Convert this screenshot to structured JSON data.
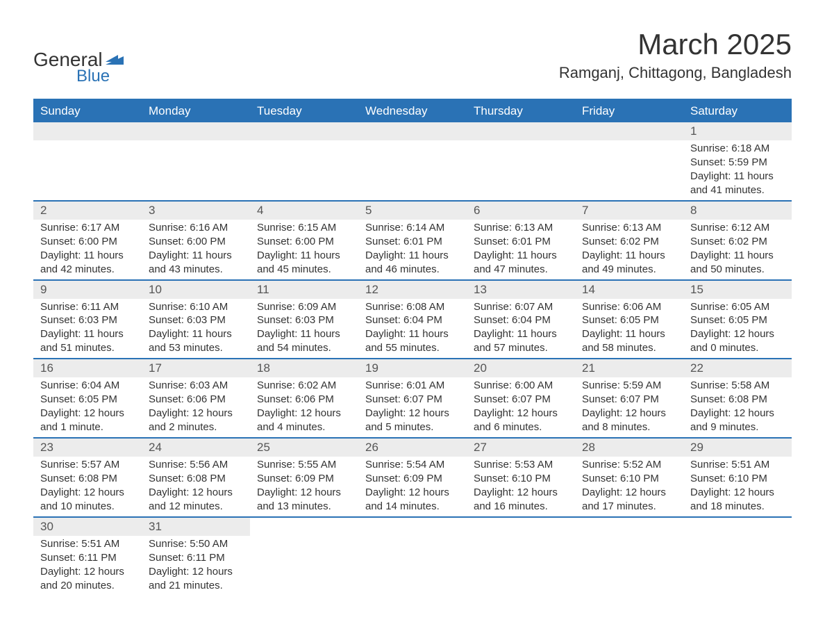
{
  "logo": {
    "text_top": "General",
    "text_bottom": "Blue"
  },
  "title": "March 2025",
  "location": "Ramganj, Chittagong, Bangladesh",
  "colors": {
    "header_bg": "#2a72b5",
    "header_text": "#ffffff",
    "daynum_bg": "#ececec",
    "daynum_text": "#555555",
    "body_text": "#333333",
    "rule": "#2a72b5",
    "page_bg": "#ffffff"
  },
  "typography": {
    "title_fontsize": 42,
    "location_fontsize": 22,
    "dayheader_fontsize": 17,
    "daynum_fontsize": 17,
    "body_fontsize": 15
  },
  "day_headers": [
    "Sunday",
    "Monday",
    "Tuesday",
    "Wednesday",
    "Thursday",
    "Friday",
    "Saturday"
  ],
  "weeks": [
    [
      {
        "num": "",
        "sunrise": "",
        "sunset": "",
        "daylight": ""
      },
      {
        "num": "",
        "sunrise": "",
        "sunset": "",
        "daylight": ""
      },
      {
        "num": "",
        "sunrise": "",
        "sunset": "",
        "daylight": ""
      },
      {
        "num": "",
        "sunrise": "",
        "sunset": "",
        "daylight": ""
      },
      {
        "num": "",
        "sunrise": "",
        "sunset": "",
        "daylight": ""
      },
      {
        "num": "",
        "sunrise": "",
        "sunset": "",
        "daylight": ""
      },
      {
        "num": "1",
        "sunrise": "Sunrise: 6:18 AM",
        "sunset": "Sunset: 5:59 PM",
        "daylight": "Daylight: 11 hours and 41 minutes."
      }
    ],
    [
      {
        "num": "2",
        "sunrise": "Sunrise: 6:17 AM",
        "sunset": "Sunset: 6:00 PM",
        "daylight": "Daylight: 11 hours and 42 minutes."
      },
      {
        "num": "3",
        "sunrise": "Sunrise: 6:16 AM",
        "sunset": "Sunset: 6:00 PM",
        "daylight": "Daylight: 11 hours and 43 minutes."
      },
      {
        "num": "4",
        "sunrise": "Sunrise: 6:15 AM",
        "sunset": "Sunset: 6:00 PM",
        "daylight": "Daylight: 11 hours and 45 minutes."
      },
      {
        "num": "5",
        "sunrise": "Sunrise: 6:14 AM",
        "sunset": "Sunset: 6:01 PM",
        "daylight": "Daylight: 11 hours and 46 minutes."
      },
      {
        "num": "6",
        "sunrise": "Sunrise: 6:13 AM",
        "sunset": "Sunset: 6:01 PM",
        "daylight": "Daylight: 11 hours and 47 minutes."
      },
      {
        "num": "7",
        "sunrise": "Sunrise: 6:13 AM",
        "sunset": "Sunset: 6:02 PM",
        "daylight": "Daylight: 11 hours and 49 minutes."
      },
      {
        "num": "8",
        "sunrise": "Sunrise: 6:12 AM",
        "sunset": "Sunset: 6:02 PM",
        "daylight": "Daylight: 11 hours and 50 minutes."
      }
    ],
    [
      {
        "num": "9",
        "sunrise": "Sunrise: 6:11 AM",
        "sunset": "Sunset: 6:03 PM",
        "daylight": "Daylight: 11 hours and 51 minutes."
      },
      {
        "num": "10",
        "sunrise": "Sunrise: 6:10 AM",
        "sunset": "Sunset: 6:03 PM",
        "daylight": "Daylight: 11 hours and 53 minutes."
      },
      {
        "num": "11",
        "sunrise": "Sunrise: 6:09 AM",
        "sunset": "Sunset: 6:03 PM",
        "daylight": "Daylight: 11 hours and 54 minutes."
      },
      {
        "num": "12",
        "sunrise": "Sunrise: 6:08 AM",
        "sunset": "Sunset: 6:04 PM",
        "daylight": "Daylight: 11 hours and 55 minutes."
      },
      {
        "num": "13",
        "sunrise": "Sunrise: 6:07 AM",
        "sunset": "Sunset: 6:04 PM",
        "daylight": "Daylight: 11 hours and 57 minutes."
      },
      {
        "num": "14",
        "sunrise": "Sunrise: 6:06 AM",
        "sunset": "Sunset: 6:05 PM",
        "daylight": "Daylight: 11 hours and 58 minutes."
      },
      {
        "num": "15",
        "sunrise": "Sunrise: 6:05 AM",
        "sunset": "Sunset: 6:05 PM",
        "daylight": "Daylight: 12 hours and 0 minutes."
      }
    ],
    [
      {
        "num": "16",
        "sunrise": "Sunrise: 6:04 AM",
        "sunset": "Sunset: 6:05 PM",
        "daylight": "Daylight: 12 hours and 1 minute."
      },
      {
        "num": "17",
        "sunrise": "Sunrise: 6:03 AM",
        "sunset": "Sunset: 6:06 PM",
        "daylight": "Daylight: 12 hours and 2 minutes."
      },
      {
        "num": "18",
        "sunrise": "Sunrise: 6:02 AM",
        "sunset": "Sunset: 6:06 PM",
        "daylight": "Daylight: 12 hours and 4 minutes."
      },
      {
        "num": "19",
        "sunrise": "Sunrise: 6:01 AM",
        "sunset": "Sunset: 6:07 PM",
        "daylight": "Daylight: 12 hours and 5 minutes."
      },
      {
        "num": "20",
        "sunrise": "Sunrise: 6:00 AM",
        "sunset": "Sunset: 6:07 PM",
        "daylight": "Daylight: 12 hours and 6 minutes."
      },
      {
        "num": "21",
        "sunrise": "Sunrise: 5:59 AM",
        "sunset": "Sunset: 6:07 PM",
        "daylight": "Daylight: 12 hours and 8 minutes."
      },
      {
        "num": "22",
        "sunrise": "Sunrise: 5:58 AM",
        "sunset": "Sunset: 6:08 PM",
        "daylight": "Daylight: 12 hours and 9 minutes."
      }
    ],
    [
      {
        "num": "23",
        "sunrise": "Sunrise: 5:57 AM",
        "sunset": "Sunset: 6:08 PM",
        "daylight": "Daylight: 12 hours and 10 minutes."
      },
      {
        "num": "24",
        "sunrise": "Sunrise: 5:56 AM",
        "sunset": "Sunset: 6:08 PM",
        "daylight": "Daylight: 12 hours and 12 minutes."
      },
      {
        "num": "25",
        "sunrise": "Sunrise: 5:55 AM",
        "sunset": "Sunset: 6:09 PM",
        "daylight": "Daylight: 12 hours and 13 minutes."
      },
      {
        "num": "26",
        "sunrise": "Sunrise: 5:54 AM",
        "sunset": "Sunset: 6:09 PM",
        "daylight": "Daylight: 12 hours and 14 minutes."
      },
      {
        "num": "27",
        "sunrise": "Sunrise: 5:53 AM",
        "sunset": "Sunset: 6:10 PM",
        "daylight": "Daylight: 12 hours and 16 minutes."
      },
      {
        "num": "28",
        "sunrise": "Sunrise: 5:52 AM",
        "sunset": "Sunset: 6:10 PM",
        "daylight": "Daylight: 12 hours and 17 minutes."
      },
      {
        "num": "29",
        "sunrise": "Sunrise: 5:51 AM",
        "sunset": "Sunset: 6:10 PM",
        "daylight": "Daylight: 12 hours and 18 minutes."
      }
    ],
    [
      {
        "num": "30",
        "sunrise": "Sunrise: 5:51 AM",
        "sunset": "Sunset: 6:11 PM",
        "daylight": "Daylight: 12 hours and 20 minutes."
      },
      {
        "num": "31",
        "sunrise": "Sunrise: 5:50 AM",
        "sunset": "Sunset: 6:11 PM",
        "daylight": "Daylight: 12 hours and 21 minutes."
      },
      {
        "num": "",
        "sunrise": "",
        "sunset": "",
        "daylight": ""
      },
      {
        "num": "",
        "sunrise": "",
        "sunset": "",
        "daylight": ""
      },
      {
        "num": "",
        "sunrise": "",
        "sunset": "",
        "daylight": ""
      },
      {
        "num": "",
        "sunrise": "",
        "sunset": "",
        "daylight": ""
      },
      {
        "num": "",
        "sunrise": "",
        "sunset": "",
        "daylight": ""
      }
    ]
  ]
}
